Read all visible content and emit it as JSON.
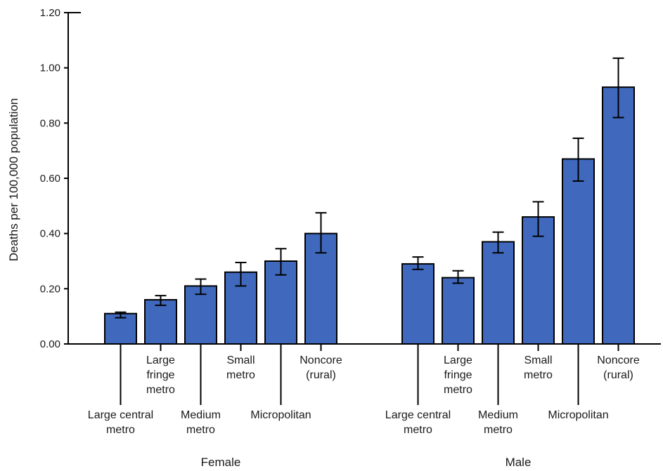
{
  "chart_data": {
    "type": "bar",
    "title": "",
    "xlabel": "",
    "ylabel": "Deaths per 100,000 population",
    "ylim": [
      0,
      1.2
    ],
    "yticks": [
      "0.00",
      "0.20",
      "0.40",
      "0.60",
      "0.80",
      "1.00",
      "1.20"
    ],
    "grid": false,
    "legend": "none",
    "bar_color": "#4069be",
    "bar_edge_color": "#000000",
    "groups": [
      {
        "name": "Female",
        "categories": [
          {
            "label": [
              "Large central",
              "metro"
            ],
            "value": 0.11,
            "ci": [
              0.095,
              0.115
            ]
          },
          {
            "label": [
              "Large",
              "fringe",
              "metro"
            ],
            "value": 0.16,
            "ci": [
              0.14,
              0.175
            ]
          },
          {
            "label": [
              "Medium",
              "metro"
            ],
            "value": 0.21,
            "ci": [
              0.18,
              0.235
            ]
          },
          {
            "label": [
              "Small",
              "metro"
            ],
            "value": 0.26,
            "ci": [
              0.21,
              0.295
            ]
          },
          {
            "label": [
              "Micropolitan"
            ],
            "value": 0.3,
            "ci": [
              0.25,
              0.345
            ]
          },
          {
            "label": [
              "Noncore",
              "(rural)"
            ],
            "value": 0.4,
            "ci": [
              0.33,
              0.475
            ]
          }
        ]
      },
      {
        "name": "Male",
        "categories": [
          {
            "label": [
              "Large central",
              "metro"
            ],
            "value": 0.29,
            "ci": [
              0.27,
              0.315
            ]
          },
          {
            "label": [
              "Large",
              "fringe",
              "metro"
            ],
            "value": 0.24,
            "ci": [
              0.22,
              0.265
            ]
          },
          {
            "label": [
              "Medium",
              "metro"
            ],
            "value": 0.37,
            "ci": [
              0.33,
              0.405
            ]
          },
          {
            "label": [
              "Small",
              "metro"
            ],
            "value": 0.46,
            "ci": [
              0.39,
              0.515
            ]
          },
          {
            "label": [
              "Micropolitan"
            ],
            "value": 0.67,
            "ci": [
              0.59,
              0.745
            ]
          },
          {
            "label": [
              "Noncore",
              "(rural)"
            ],
            "value": 0.93,
            "ci": [
              0.82,
              1.035
            ]
          }
        ]
      }
    ]
  }
}
